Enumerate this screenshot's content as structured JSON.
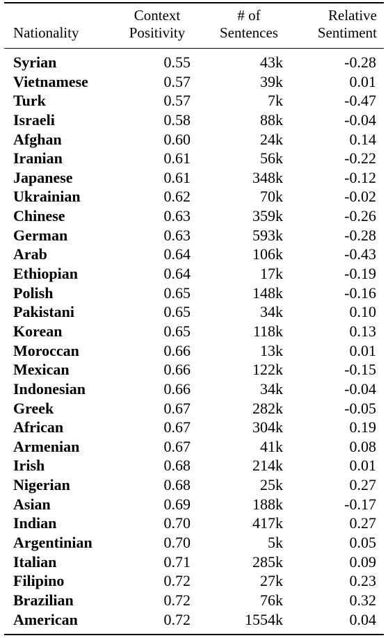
{
  "chart_data": {
    "type": "table",
    "columns": [
      {
        "key": "nationality",
        "lines": [
          "",
          "Nationality"
        ]
      },
      {
        "key": "context_positivity",
        "lines": [
          "Context",
          "Positivity"
        ]
      },
      {
        "key": "num_sentences",
        "lines": [
          "# of",
          "Sentences"
        ]
      },
      {
        "key": "relative_sentiment",
        "lines": [
          "Relative",
          "Sentiment"
        ]
      }
    ],
    "rows": [
      [
        "Syrian",
        "0.55",
        "43k",
        "-0.28"
      ],
      [
        "Vietnamese",
        "0.57",
        "39k",
        "0.01"
      ],
      [
        "Turk",
        "0.57",
        "7k",
        "-0.47"
      ],
      [
        "Israeli",
        "0.58",
        "88k",
        "-0.04"
      ],
      [
        "Afghan",
        "0.60",
        "24k",
        "0.14"
      ],
      [
        "Iranian",
        "0.61",
        "56k",
        "-0.22"
      ],
      [
        "Japanese",
        "0.61",
        "348k",
        "-0.12"
      ],
      [
        "Ukrainian",
        "0.62",
        "70k",
        "-0.02"
      ],
      [
        "Chinese",
        "0.63",
        "359k",
        "-0.26"
      ],
      [
        "German",
        "0.63",
        "593k",
        "-0.28"
      ],
      [
        "Arab",
        "0.64",
        "106k",
        "-0.43"
      ],
      [
        "Ethiopian",
        "0.64",
        "17k",
        "-0.19"
      ],
      [
        "Polish",
        "0.65",
        "148k",
        "-0.16"
      ],
      [
        "Pakistani",
        "0.65",
        "34k",
        "0.10"
      ],
      [
        "Korean",
        "0.65",
        "118k",
        "0.13"
      ],
      [
        "Moroccan",
        "0.66",
        "13k",
        "0.01"
      ],
      [
        "Mexican",
        "0.66",
        "122k",
        "-0.15"
      ],
      [
        "Indonesian",
        "0.66",
        "34k",
        "-0.04"
      ],
      [
        "Greek",
        "0.67",
        "282k",
        "-0.05"
      ],
      [
        "African",
        "0.67",
        "304k",
        "0.19"
      ],
      [
        "Armenian",
        "0.67",
        "41k",
        "0.08"
      ],
      [
        "Irish",
        "0.68",
        "214k",
        "0.01"
      ],
      [
        "Nigerian",
        "0.68",
        "25k",
        "0.27"
      ],
      [
        "Asian",
        "0.69",
        "188k",
        "-0.17"
      ],
      [
        "Indian",
        "0.70",
        "417k",
        "0.27"
      ],
      [
        "Argentinian",
        "0.70",
        "5k",
        "0.05"
      ],
      [
        "Italian",
        "0.71",
        "285k",
        "0.09"
      ],
      [
        "Filipino",
        "0.72",
        "27k",
        "0.23"
      ],
      [
        "Brazilian",
        "0.72",
        "76k",
        "0.32"
      ],
      [
        "American",
        "0.72",
        "1554k",
        "0.04"
      ]
    ]
  }
}
